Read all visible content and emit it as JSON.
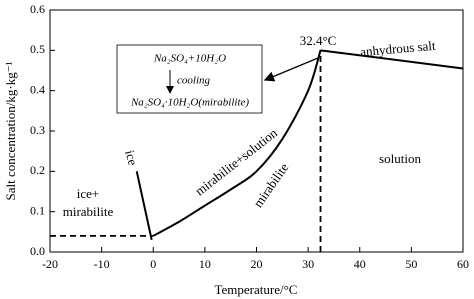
{
  "chart_data": {
    "type": "line",
    "x_label": "Temperature/°C",
    "y_label": "Salt concentration/kg·kg⁻¹",
    "xlim": [
      -20,
      60
    ],
    "xticks": [
      -20,
      -10,
      0,
      10,
      20,
      30,
      40,
      50,
      60
    ],
    "ylim": [
      0,
      0.6
    ],
    "yticks": [
      0.0,
      0.1,
      0.2,
      0.3,
      0.4,
      0.5,
      0.6
    ],
    "series": [
      {
        "color": "#000000",
        "dash": false,
        "x": [
          -3.2,
          -0.3
        ],
        "values": [
          0.2,
          0.03
        ]
      },
      {
        "color": "#000000",
        "dash": false,
        "x": [
          0,
          5,
          10,
          15,
          20,
          25,
          30,
          32.4
        ],
        "values": [
          0.04,
          0.075,
          0.115,
          0.155,
          0.2,
          0.28,
          0.4,
          0.5
        ]
      },
      {
        "color": "#000000",
        "dash": false,
        "x": [
          32.4,
          60
        ],
        "values": [
          0.5,
          0.455
        ]
      },
      {
        "color": "#000000",
        "dash": true,
        "x": [
          -20,
          0
        ],
        "values": [
          0.04,
          0.04
        ]
      },
      {
        "color": "#000000",
        "dash": true,
        "x": [
          32.4,
          32.4
        ],
        "values": [
          0,
          0.5
        ]
      }
    ],
    "annotations": [
      "32.4°C",
      "anhydrous salt",
      "ice+",
      "mirabilite",
      "ice",
      "mirabilite+solution",
      "mirabilite",
      "solution"
    ],
    "box_lines": [
      "Na₂SO₄+10H₂O",
      "cooling",
      "Na₂SO₄·10H₂O(mirabilite)"
    ]
  }
}
